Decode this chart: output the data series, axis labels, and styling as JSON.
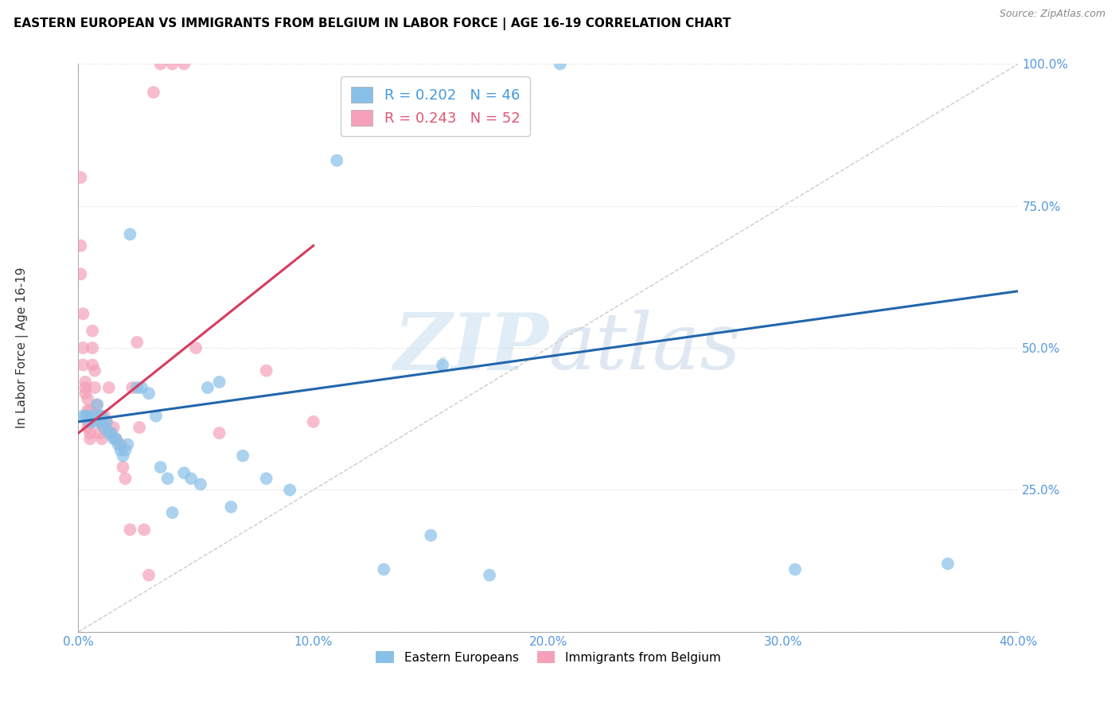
{
  "title": "EASTERN EUROPEAN VS IMMIGRANTS FROM BELGIUM IN LABOR FORCE | AGE 16-19 CORRELATION CHART",
  "source": "Source: ZipAtlas.com",
  "ylabel": "In Labor Force | Age 16-19",
  "xlim": [
    0.0,
    0.4
  ],
  "ylim": [
    0.0,
    1.0
  ],
  "x_ticks": [
    0.0,
    0.1,
    0.2,
    0.3,
    0.4
  ],
  "x_tick_labels": [
    "0.0%",
    "10.0%",
    "20.0%",
    "30.0%",
    "40.0%"
  ],
  "y_ticks": [
    0.0,
    0.25,
    0.5,
    0.75,
    1.0
  ],
  "y_tick_labels": [
    "",
    "25.0%",
    "50.0%",
    "75.0%",
    "100.0%"
  ],
  "blue_color": "#88c0e8",
  "pink_color": "#f4a0b8",
  "blue_line_color": "#2166ac",
  "pink_line_color": "#d63c5e",
  "diag_line_color": "#cccccc",
  "legend_blue_label": "R = 0.202   N = 46",
  "legend_pink_label": "R = 0.243   N = 52",
  "legend_label_eastern": "Eastern Europeans",
  "legend_label_belgium": "Immigrants from Belgium",
  "watermark_zip": "ZIP",
  "watermark_atlas": "atlas",
  "blue_scatter_x": [
    0.002,
    0.003,
    0.004,
    0.005,
    0.006,
    0.007,
    0.008,
    0.009,
    0.01,
    0.01,
    0.011,
    0.012,
    0.013,
    0.014,
    0.015,
    0.016,
    0.017,
    0.018,
    0.019,
    0.02,
    0.021,
    0.022,
    0.025,
    0.027,
    0.03,
    0.033,
    0.035,
    0.038,
    0.04,
    0.045,
    0.048,
    0.052,
    0.055,
    0.06,
    0.065,
    0.07,
    0.08,
    0.09,
    0.11,
    0.13,
    0.15,
    0.175,
    0.205,
    0.155,
    0.305,
    0.37
  ],
  "blue_scatter_y": [
    0.38,
    0.38,
    0.38,
    0.37,
    0.38,
    0.37,
    0.4,
    0.38,
    0.38,
    0.37,
    0.36,
    0.37,
    0.35,
    0.35,
    0.34,
    0.34,
    0.33,
    0.32,
    0.31,
    0.32,
    0.33,
    0.7,
    0.43,
    0.43,
    0.42,
    0.38,
    0.29,
    0.27,
    0.21,
    0.28,
    0.27,
    0.26,
    0.43,
    0.44,
    0.22,
    0.31,
    0.27,
    0.25,
    0.83,
    0.11,
    0.17,
    0.1,
    1.0,
    0.47,
    0.11,
    0.12
  ],
  "pink_scatter_x": [
    0.001,
    0.001,
    0.001,
    0.002,
    0.002,
    0.002,
    0.003,
    0.003,
    0.003,
    0.004,
    0.004,
    0.004,
    0.004,
    0.005,
    0.005,
    0.005,
    0.005,
    0.006,
    0.006,
    0.006,
    0.007,
    0.007,
    0.008,
    0.008,
    0.009,
    0.009,
    0.01,
    0.01,
    0.011,
    0.011,
    0.012,
    0.013,
    0.014,
    0.015,
    0.016,
    0.018,
    0.019,
    0.02,
    0.022,
    0.023,
    0.025,
    0.026,
    0.028,
    0.03,
    0.032,
    0.035,
    0.04,
    0.045,
    0.05,
    0.06,
    0.08,
    0.1
  ],
  "pink_scatter_y": [
    0.8,
    0.68,
    0.63,
    0.56,
    0.5,
    0.47,
    0.44,
    0.43,
    0.42,
    0.41,
    0.39,
    0.37,
    0.36,
    0.39,
    0.37,
    0.35,
    0.34,
    0.53,
    0.5,
    0.47,
    0.46,
    0.43,
    0.4,
    0.38,
    0.37,
    0.35,
    0.37,
    0.34,
    0.38,
    0.36,
    0.37,
    0.43,
    0.35,
    0.36,
    0.34,
    0.33,
    0.29,
    0.27,
    0.18,
    0.43,
    0.51,
    0.36,
    0.18,
    0.1,
    0.95,
    1.0,
    1.0,
    1.0,
    0.5,
    0.35,
    0.46,
    0.37
  ],
  "blue_trendline_x": [
    0.0,
    0.4
  ],
  "blue_trendline_y": [
    0.37,
    0.6
  ],
  "pink_trendline_x": [
    0.0,
    0.1
  ],
  "pink_trendline_y": [
    0.35,
    0.68
  ]
}
